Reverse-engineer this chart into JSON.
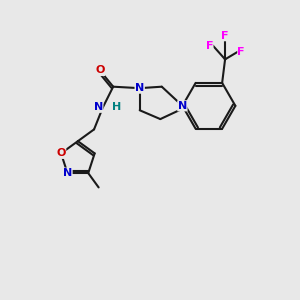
{
  "background_color": "#e8e8e8",
  "atom_colors": {
    "N": "#0000cc",
    "O": "#cc0000",
    "F": "#ff00ff",
    "H": "#008080"
  },
  "bond_color": "#1a1a1a",
  "figsize": [
    3.0,
    3.0
  ],
  "dpi": 100
}
